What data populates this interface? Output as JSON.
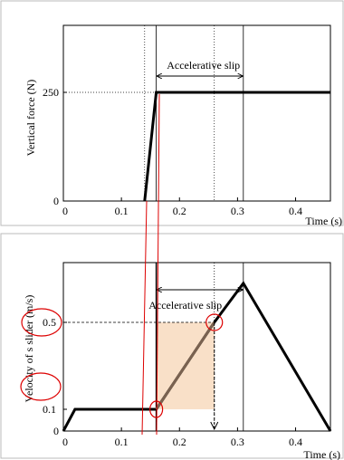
{
  "chart_data": [
    {
      "type": "line",
      "xlabel": "Time (s)",
      "ylabel": "Vertical force (N)",
      "xlim": [
        0,
        0.46
      ],
      "x_ticks": [
        "0",
        "0.1",
        "0.2",
        "0.3",
        "0.4"
      ],
      "y_ticks": [
        "0",
        "250"
      ],
      "series": [
        {
          "x": [
            0.14,
            0.16,
            0.46
          ],
          "y": [
            0,
            250,
            250
          ]
        }
      ],
      "reference_lines_x": [
        0.14,
        0.16,
        0.26,
        0.31
      ],
      "annotation": {
        "text": "Accelerative slip",
        "x_from": 0.16,
        "x_to": 0.31,
        "y": 290
      }
    },
    {
      "type": "line",
      "xlabel": "Time (s)",
      "ylabel": "Velocity of s slider (m/s)",
      "xlim": [
        0,
        0.46
      ],
      "x_ticks": [
        "0",
        "0.1",
        "0.2",
        "0.3",
        "0.4"
      ],
      "y_ticks": [
        "0",
        "0.1",
        "0.5"
      ],
      "series": [
        {
          "x": [
            0,
            0.02,
            0.16,
            0.26,
            0.31,
            0.46
          ],
          "y": [
            0,
            0.1,
            0.1,
            0.5,
            0.68,
            0
          ]
        }
      ],
      "reference_lines_x": [
        0.16,
        0.26,
        0.31
      ],
      "annotation": {
        "text": "Accelerative slip",
        "x_from": 0.16,
        "x_to": 0.31,
        "y": 0.6
      },
      "highlights": {
        "color": "#f9e0c8",
        "stroke": "#dd0000"
      }
    }
  ]
}
